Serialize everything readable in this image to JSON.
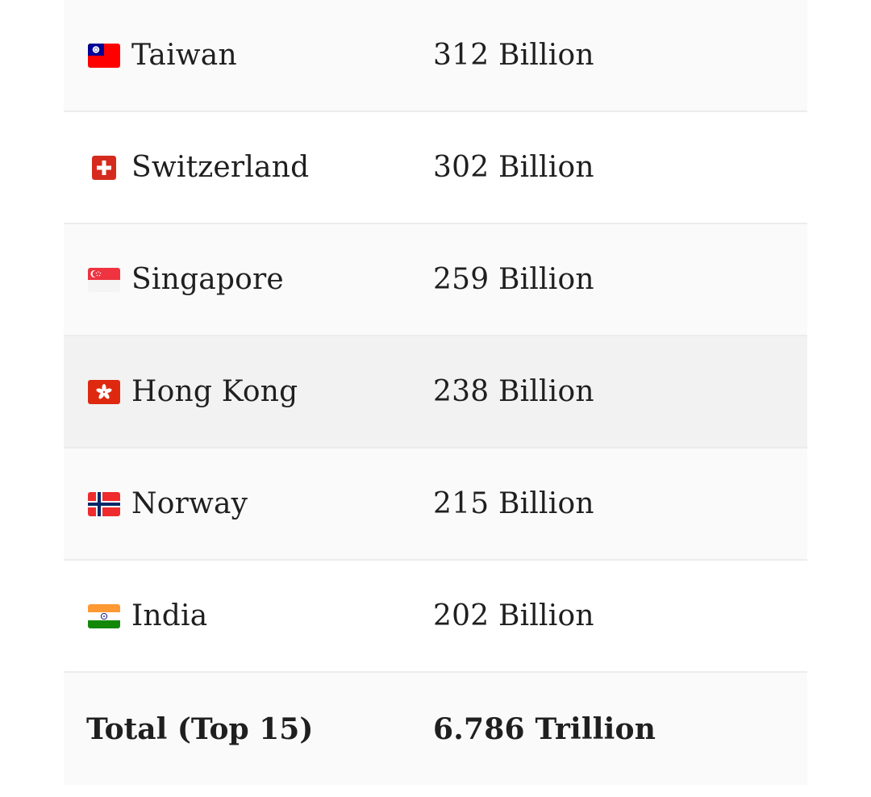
{
  "rows": [
    {
      "country": "Taiwan",
      "flag": "taiwan-flag-icon",
      "value": "312 Billion"
    },
    {
      "country": "Switzerland",
      "flag": "switzerland-flag-icon",
      "value": "302 Billion"
    },
    {
      "country": "Singapore",
      "flag": "singapore-flag-icon",
      "value": "259 Billion"
    },
    {
      "country": "Hong Kong",
      "flag": "hong-kong-flag-icon",
      "value": "238 Billion"
    },
    {
      "country": "Norway",
      "flag": "norway-flag-icon",
      "value": "215 Billion"
    },
    {
      "country": "India",
      "flag": "india-flag-icon",
      "value": "202 Billion"
    }
  ],
  "total": {
    "label": "Total (Top 15)",
    "value": "6.786 Trillion"
  },
  "colors": {
    "row_odd": "#fafafa",
    "row_even": "#ffffff",
    "row_highlight": "#f2f2f2",
    "divider": "#ececec",
    "text": "#1f1f1f"
  }
}
